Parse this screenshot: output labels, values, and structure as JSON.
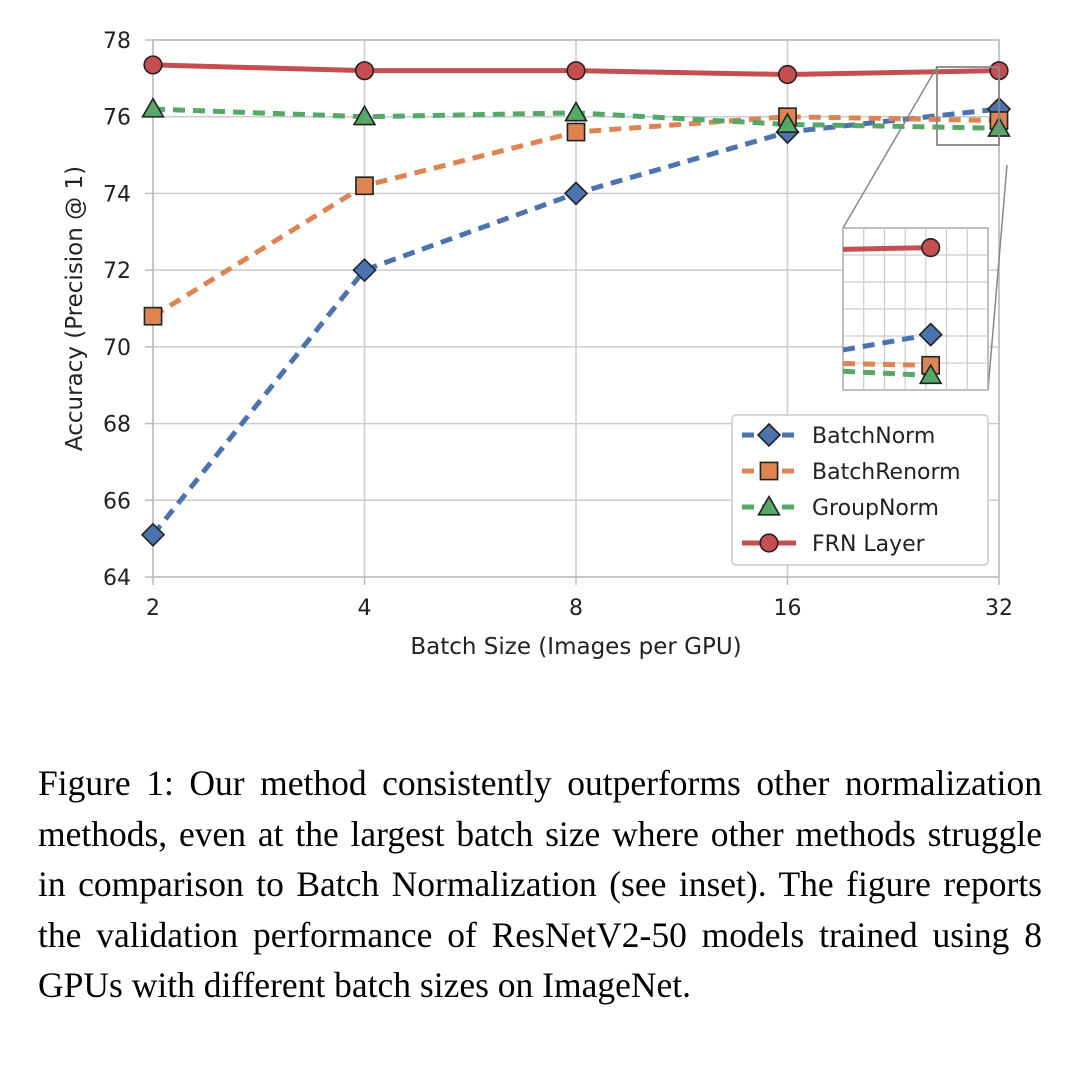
{
  "chart_data": {
    "type": "line",
    "x": [
      2,
      4,
      8,
      16,
      32
    ],
    "x_scale": "log2",
    "xlabel": "Batch Size (Images per GPU)",
    "ylabel": "Accuracy (Precision @ 1)",
    "ylim": [
      64,
      78
    ],
    "yticks": [
      64,
      66,
      68,
      70,
      72,
      74,
      76,
      78
    ],
    "xticks": [
      "2",
      "4",
      "8",
      "16",
      "32"
    ],
    "grid": true,
    "legend_position": "lower-right",
    "inset": "zoomed view of the batch size 32 region",
    "series": [
      {
        "name": "BatchNorm",
        "values": [
          65.1,
          72.0,
          74.0,
          75.6,
          76.2
        ],
        "color": "#4c72b0",
        "marker": "diamond",
        "linestyle": "dashed"
      },
      {
        "name": "BatchRenorm",
        "values": [
          70.8,
          74.2,
          75.6,
          76.0,
          75.9
        ],
        "color": "#dd8452",
        "marker": "square",
        "linestyle": "dashed"
      },
      {
        "name": "GroupNorm",
        "values": [
          76.2,
          76.0,
          76.1,
          75.8,
          75.7
        ],
        "color": "#55a868",
        "marker": "triangle",
        "linestyle": "dashed"
      },
      {
        "name": "FRN Layer",
        "values": [
          77.35,
          77.2,
          77.2,
          77.1,
          77.2
        ],
        "color": "#c44e52",
        "marker": "circle",
        "linestyle": "solid"
      }
    ]
  },
  "caption": {
    "text": "Figure 1: Our method consistently outperforms other normalization methods, even at the largest batch size where other methods struggle in comparison to Batch Normalization (see inset). The figure reports the validation performance of ResNetV2-50 models trained using 8 GPUs with different batch sizes on ImageNet."
  }
}
